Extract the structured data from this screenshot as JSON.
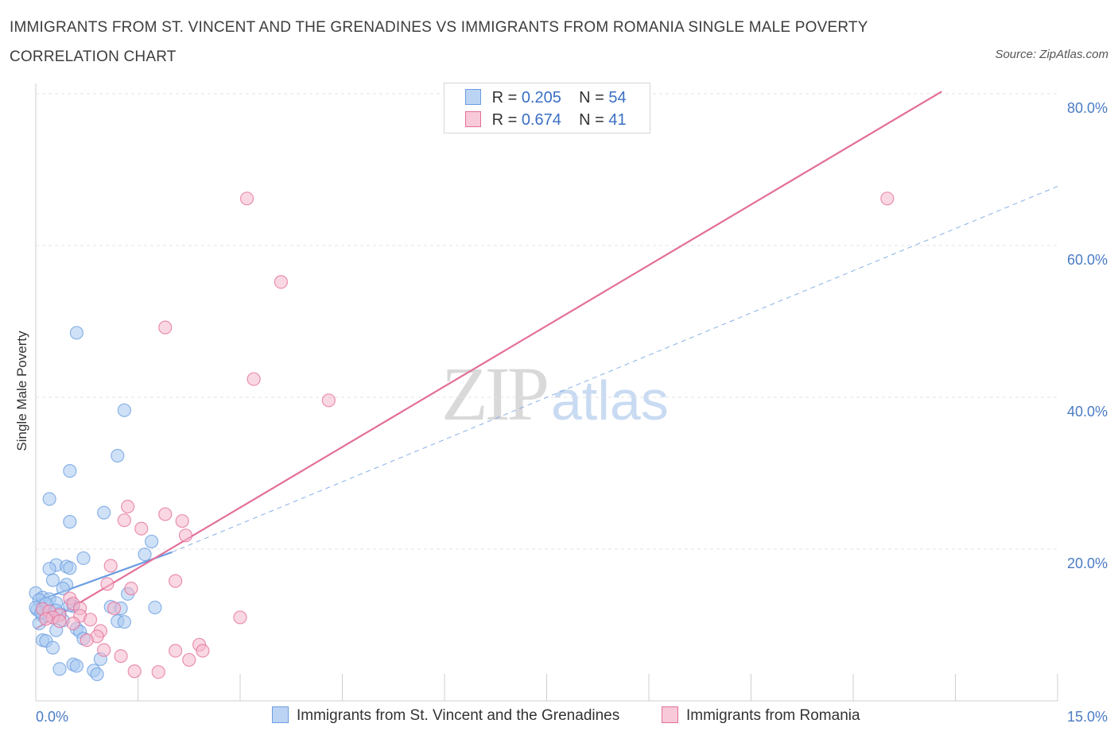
{
  "header": {
    "title": "IMMIGRANTS FROM ST. VINCENT AND THE GRENADINES VS IMMIGRANTS FROM ROMANIA SINGLE MALE POVERTY CORRELATION CHART",
    "source": "Source: ZipAtlas.com"
  },
  "watermark": {
    "zip": "ZIP",
    "atlas": "atlas"
  },
  "legend": {
    "rows": [
      {
        "r_label": "R =",
        "r_value": "0.205",
        "n_label": "N =",
        "n_value": "54",
        "color": "#a8c8f0"
      },
      {
        "r_label": "R =",
        "r_value": "0.674",
        "n_label": "N =",
        "n_value": "41",
        "color": "#f5b8cc"
      }
    ]
  },
  "chart_data": {
    "type": "scatter",
    "title": "IMMIGRANTS FROM ST. VINCENT AND THE GRENADINES VS IMMIGRANTS FROM ROMANIA SINGLE MALE POVERTY CORRELATION CHART",
    "ylabel": "Single Male Poverty",
    "xlabel": "",
    "xlim": [
      0,
      15
    ],
    "ylim": [
      0,
      80
    ],
    "x_tick_labels": [
      "0.0%",
      "15.0%"
    ],
    "y_ticks": [
      20,
      40,
      60,
      80
    ],
    "y_tick_labels": [
      "20.0%",
      "40.0%",
      "60.0%",
      "80.0%"
    ],
    "grid": true,
    "legend_position": "top-center",
    "series": [
      {
        "name": "Immigrants from St. Vincent and the Grenadines",
        "color": "#6b9de0",
        "fill": "#a8c8f0",
        "points": [
          [
            0.6,
            48.5
          ],
          [
            1.3,
            38.3
          ],
          [
            1.2,
            32.3
          ],
          [
            0.5,
            30.3
          ],
          [
            0.2,
            26.6
          ],
          [
            1.0,
            24.8
          ],
          [
            0.5,
            23.6
          ],
          [
            1.7,
            21.0
          ],
          [
            1.6,
            19.3
          ],
          [
            0.7,
            18.8
          ],
          [
            0.3,
            17.9
          ],
          [
            0.45,
            17.7
          ],
          [
            0.2,
            17.4
          ],
          [
            0.5,
            17.5
          ],
          [
            0.25,
            15.9
          ],
          [
            0.45,
            15.3
          ],
          [
            0.4,
            14.8
          ],
          [
            0.0,
            14.2
          ],
          [
            0.1,
            13.6
          ],
          [
            0.2,
            13.4
          ],
          [
            0.05,
            13.3
          ],
          [
            1.35,
            14.1
          ],
          [
            0.3,
            12.9
          ],
          [
            0.55,
            12.5
          ],
          [
            1.1,
            12.4
          ],
          [
            1.75,
            12.3
          ],
          [
            1.25,
            12.2
          ],
          [
            0.02,
            12.0
          ],
          [
            0.15,
            11.8
          ],
          [
            0.35,
            11.5
          ],
          [
            0.1,
            11.2
          ],
          [
            0.25,
            11.0
          ],
          [
            0.4,
            10.6
          ],
          [
            1.2,
            10.5
          ],
          [
            1.3,
            10.4
          ],
          [
            0.05,
            10.2
          ],
          [
            0.6,
            9.5
          ],
          [
            0.3,
            9.3
          ],
          [
            0.65,
            9.1
          ],
          [
            0.7,
            8.2
          ],
          [
            0.1,
            8.0
          ],
          [
            0.15,
            7.9
          ],
          [
            0.25,
            7.0
          ],
          [
            0.95,
            5.5
          ],
          [
            0.55,
            4.8
          ],
          [
            0.6,
            4.6
          ],
          [
            0.35,
            4.2
          ],
          [
            0.85,
            4.0
          ],
          [
            0.9,
            3.5
          ],
          [
            0.0,
            12.3
          ],
          [
            0.15,
            12.8
          ],
          [
            0.08,
            11.6
          ],
          [
            0.5,
            12.6
          ],
          [
            0.3,
            11.9
          ]
        ],
        "trend": {
          "x": [
            0,
            2.0
          ],
          "y": [
            13.1,
            19.6
          ]
        },
        "trend_extension": {
          "x": [
            2.0,
            15.0
          ],
          "y": [
            19.6,
            67.8
          ]
        }
      },
      {
        "name": "Immigrants from Romania",
        "color": "#e36f9a",
        "fill": "#f5b8cc",
        "points": [
          [
            3.1,
            66.2
          ],
          [
            12.5,
            66.2
          ],
          [
            3.6,
            55.2
          ],
          [
            1.9,
            49.2
          ],
          [
            3.2,
            42.4
          ],
          [
            4.3,
            39.6
          ],
          [
            1.35,
            25.6
          ],
          [
            1.9,
            24.6
          ],
          [
            1.3,
            23.8
          ],
          [
            2.15,
            23.7
          ],
          [
            1.55,
            22.7
          ],
          [
            2.2,
            21.8
          ],
          [
            1.1,
            17.8
          ],
          [
            2.05,
            15.8
          ],
          [
            1.05,
            15.4
          ],
          [
            1.4,
            14.8
          ],
          [
            0.5,
            13.5
          ],
          [
            0.55,
            12.8
          ],
          [
            0.65,
            12.2
          ],
          [
            1.15,
            12.2
          ],
          [
            0.1,
            12.1
          ],
          [
            0.2,
            11.8
          ],
          [
            0.35,
            11.3
          ],
          [
            0.25,
            11.0
          ],
          [
            0.65,
            11.2
          ],
          [
            0.8,
            10.7
          ],
          [
            3.0,
            11.0
          ],
          [
            0.35,
            10.5
          ],
          [
            0.55,
            10.2
          ],
          [
            0.95,
            9.2
          ],
          [
            0.9,
            8.5
          ],
          [
            0.75,
            8.0
          ],
          [
            2.4,
            7.4
          ],
          [
            2.45,
            6.6
          ],
          [
            1.0,
            6.7
          ],
          [
            2.05,
            6.6
          ],
          [
            1.25,
            5.9
          ],
          [
            2.25,
            5.4
          ],
          [
            1.45,
            3.9
          ],
          [
            1.8,
            3.8
          ],
          [
            0.15,
            10.8
          ]
        ],
        "trend": {
          "x": [
            0,
            13.3
          ],
          "y": [
            9.5,
            80.3
          ]
        }
      }
    ]
  },
  "bottom_legend": [
    {
      "label": "Immigrants from St. Vincent and the Grenadines",
      "color": "#a8c8f0",
      "border": "#6b9de0"
    },
    {
      "label": "Immigrants from Romania",
      "color": "#f5b8cc",
      "border": "#e36f9a"
    }
  ]
}
